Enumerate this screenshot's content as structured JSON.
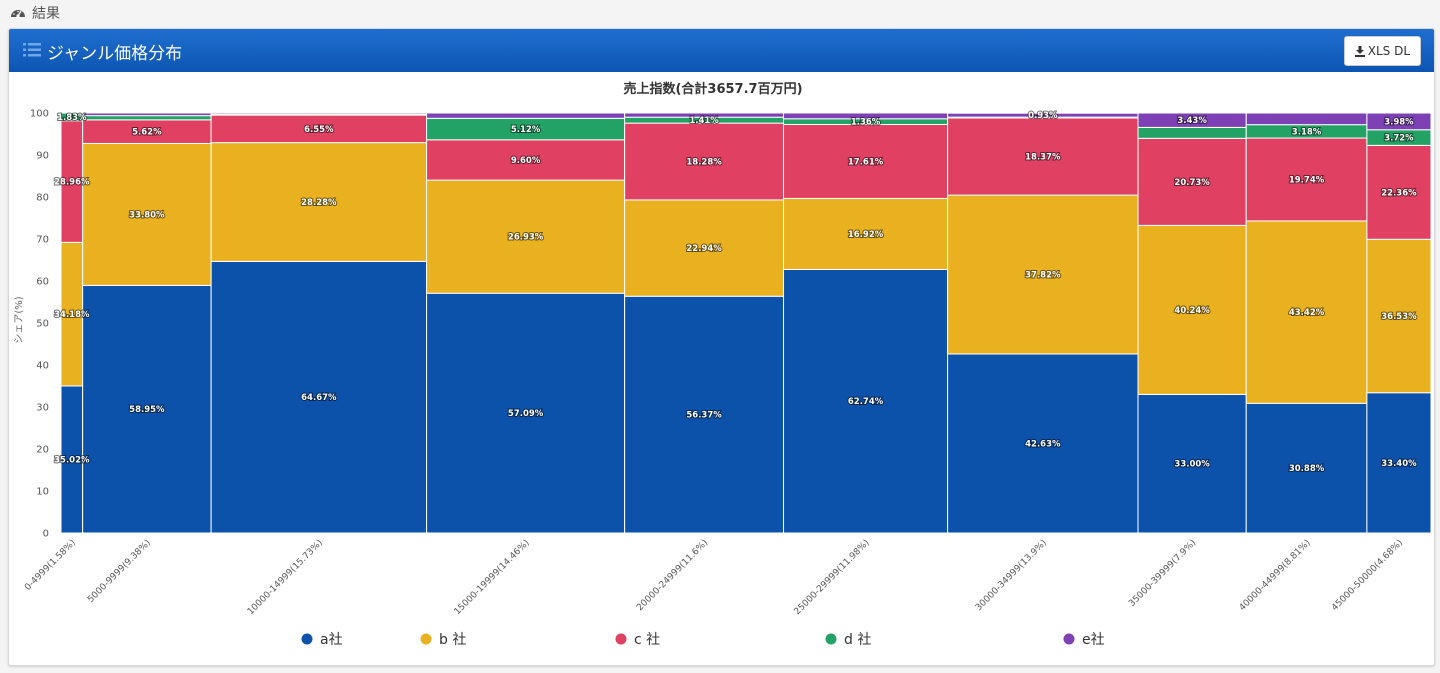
{
  "breadcrumb": {
    "label": "結果"
  },
  "panel": {
    "title": "ジャンル価格分布",
    "xls_button": "XLS DL"
  },
  "colors": {
    "header": "#1565c0",
    "a": "#0d52aa",
    "b": "#e9b11f",
    "c": "#e04163",
    "d": "#23a265",
    "e": "#7d40b5"
  },
  "chart_data": {
    "type": "bar",
    "subtype": "stacked-marimekko",
    "title": "売上指数(合計3657.7百万円)",
    "xlabel": "",
    "ylabel": "シェア(%)",
    "ylim": [
      0,
      100
    ],
    "yticks": [
      0,
      10,
      20,
      30,
      40,
      50,
      60,
      70,
      80,
      90,
      100
    ],
    "grid": false,
    "legend_position": "bottom",
    "categories": [
      "0-4999(1.58%)",
      "5000-9999(9.38%)",
      "10000-14999(15.73%)",
      "15000-19999(14.46%)",
      "20000-24999(11.6%)",
      "25000-29999(11.98%)",
      "30000-34999(13.9%)",
      "35000-39999(7.9%)",
      "40000-44999(8.81%)",
      "45000-50000(4.68%)"
    ],
    "widths": [
      1.58,
      9.38,
      15.73,
      14.46,
      11.6,
      11.98,
      13.9,
      7.9,
      8.81,
      4.68
    ],
    "series": [
      {
        "name": "a社",
        "values": [
          35.02,
          58.95,
          64.67,
          57.09,
          56.37,
          62.74,
          42.63,
          33.0,
          30.88,
          33.4
        ],
        "labels": [
          "35.02%",
          "58.95%",
          "64.67%",
          "57.09%",
          "56.37%",
          "62.74%",
          "42.63%",
          "33.00%",
          "30.88%",
          "33.40%"
        ]
      },
      {
        "name": "b 社",
        "values": [
          34.18,
          33.8,
          28.28,
          26.93,
          22.94,
          16.92,
          37.82,
          40.24,
          43.42,
          36.53
        ],
        "labels": [
          "34.18%",
          "33.80%",
          "28.28%",
          "26.93%",
          "22.94%",
          "16.92%",
          "37.82%",
          "40.24%",
          "43.42%",
          "36.53%"
        ]
      },
      {
        "name": "c 社",
        "values": [
          28.96,
          5.62,
          6.55,
          9.6,
          18.28,
          17.61,
          18.37,
          20.73,
          19.74,
          22.36
        ],
        "labels": [
          "28.96%",
          "5.62%",
          "6.55%",
          "9.60%",
          "18.28%",
          "17.61%",
          "18.37%",
          "20.73%",
          "19.74%",
          "22.36%"
        ]
      },
      {
        "name": "d 社",
        "values": [
          1.83,
          1.0,
          0.2,
          5.12,
          1.41,
          1.36,
          0.2,
          2.6,
          3.18,
          3.72
        ],
        "labels": [
          "1.83%",
          "",
          "",
          "5.12%",
          "1.41%",
          "1.36%",
          "",
          "",
          "3.18%",
          "3.72%"
        ]
      },
      {
        "name": "e社",
        "values": [
          0.01,
          0.63,
          0.3,
          1.26,
          1.0,
          1.37,
          0.93,
          3.43,
          2.78,
          3.98
        ],
        "labels": [
          "",
          "",
          "",
          "",
          "",
          "",
          "0.93%",
          "3.43%",
          "",
          "3.98%"
        ]
      }
    ]
  }
}
